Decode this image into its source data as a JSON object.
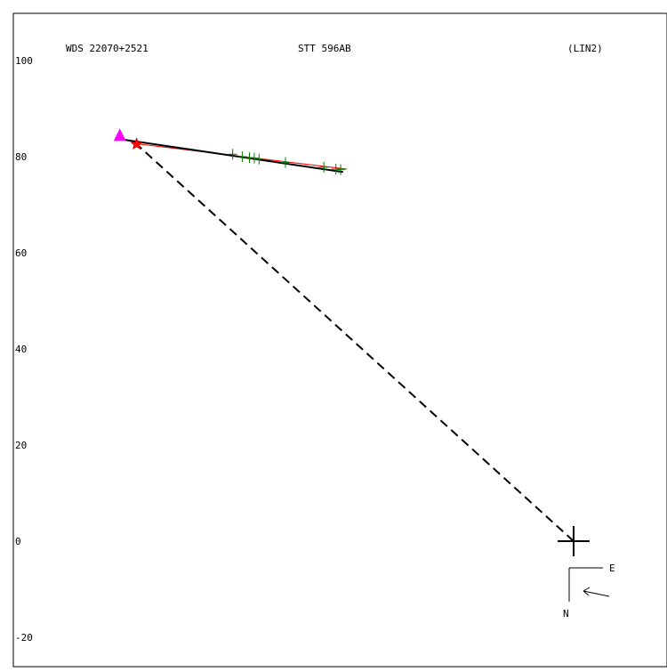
{
  "chart_data": {
    "type": "scatter",
    "title_left": "WDS 22070+2521",
    "title_center": "STT 596AB",
    "title_right": "(LIN2)",
    "xlabel": "",
    "ylabel": "",
    "ylim": [
      -20,
      100
    ],
    "y_ticks": [
      "100",
      "80",
      "60",
      "40",
      "20",
      "0",
      "-20"
    ],
    "y_tick_values": [
      100,
      80,
      60,
      40,
      20,
      0,
      -20
    ],
    "grid": false,
    "primary_star": {
      "x": 0,
      "y": 0,
      "marker": "cross"
    },
    "fitted_orbit": {
      "name": "",
      "color": "#000000",
      "points": [
        [
          -95.5,
          83.8
        ],
        [
          -48.0,
          76.8
        ]
      ]
    },
    "reference_orbit": {
      "name": "",
      "color": "#ff0000",
      "points": [
        [
          -92.0,
          82.8
        ],
        [
          -47.2,
          77.4
        ]
      ]
    },
    "observations": {
      "color": "#008000",
      "marker": "plus",
      "points": [
        [
          -71.0,
          80.5
        ],
        [
          -69.0,
          80.0
        ],
        [
          -67.5,
          79.8
        ],
        [
          -66.5,
          79.7
        ],
        [
          -65.5,
          79.5
        ],
        [
          -60.0,
          78.8
        ],
        [
          -52.0,
          77.8
        ],
        [
          -49.5,
          77.4
        ],
        [
          -48.5,
          77.3
        ]
      ]
    },
    "first_measure": {
      "x": -94.5,
      "y": 84.2,
      "marker": "triangle",
      "color": "#ff00ff"
    },
    "current_position": {
      "x": -91.0,
      "y": 82.6,
      "marker": "star",
      "color": "#ff0000"
    },
    "separation_line": {
      "from": [
        0,
        0
      ],
      "to": [
        -91.0,
        82.6
      ],
      "style": "dashed",
      "color": "#000000"
    },
    "orientation": {
      "east_label": "E",
      "north_label": "N"
    }
  }
}
